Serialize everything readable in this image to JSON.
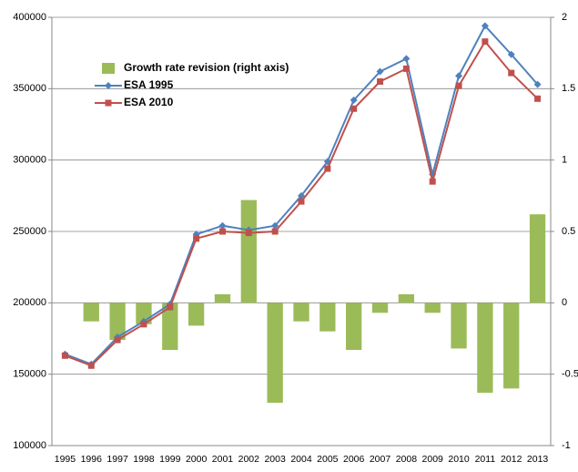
{
  "chart_data": {
    "type": "combo",
    "categories": [
      "1995",
      "1996",
      "1997",
      "1998",
      "1999",
      "2000",
      "2001",
      "2002",
      "2003",
      "2004",
      "2005",
      "2006",
      "2007",
      "2008",
      "2009",
      "2010",
      "2011",
      "2012",
      "2013"
    ],
    "series": [
      {
        "name": "Growth rate revision (right axis)",
        "type": "bar",
        "axis": "y2",
        "color": "#9bbb59",
        "values": [
          0,
          -0.13,
          -0.26,
          -0.15,
          -0.33,
          -0.16,
          0.06,
          0.72,
          -0.7,
          -0.13,
          -0.2,
          -0.33,
          -0.07,
          0.06,
          -0.07,
          -0.32,
          -0.63,
          -0.6,
          0.62
        ]
      },
      {
        "name": "ESA 1995",
        "type": "line",
        "marker": "diamond",
        "color": "#4f81bd",
        "values": [
          164000,
          157000,
          176000,
          187000,
          199000,
          248000,
          254000,
          251000,
          254000,
          275000,
          299000,
          342000,
          362000,
          371000,
          290000,
          359000,
          394000,
          374000,
          353000
        ]
      },
      {
        "name": "ESA 2010",
        "type": "line",
        "marker": "square",
        "color": "#c0504d",
        "values": [
          163000,
          156000,
          174000,
          185000,
          197000,
          245000,
          250000,
          249000,
          250000,
          271000,
          294000,
          336000,
          355000,
          364000,
          285000,
          352000,
          383000,
          361000,
          343000
        ]
      }
    ],
    "ylim": [
      100000,
      400000
    ],
    "yticks": [
      100000,
      150000,
      200000,
      250000,
      300000,
      350000,
      400000
    ],
    "y2lim": [
      -1,
      2
    ],
    "y2ticks": [
      -1,
      -0.5,
      0,
      0.5,
      1,
      1.5,
      2
    ],
    "grid": true,
    "legend": "top-left"
  }
}
